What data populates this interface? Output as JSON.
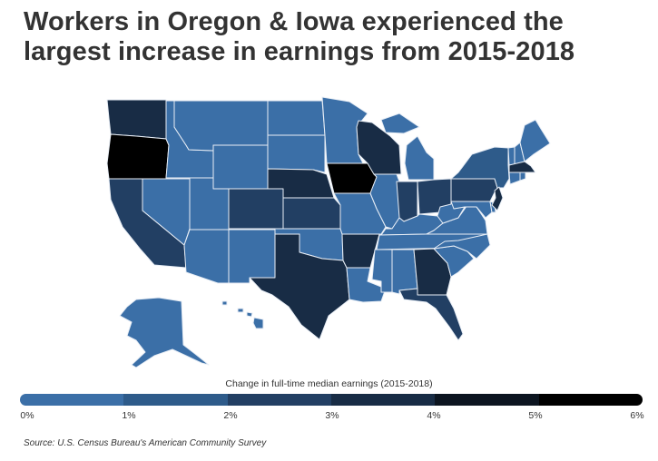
{
  "title": "Workers in Oregon & Iowa experienced the largest increase in earnings from 2015-2018",
  "legend": {
    "caption": "Change in full-time median earnings (2015-2018)",
    "ticks": [
      "0%",
      "1%",
      "2%",
      "3%",
      "4%",
      "5%",
      "6%"
    ],
    "colors": [
      "#3b6fa7",
      "#2e5b8a",
      "#223f63",
      "#182c45",
      "#0c1520",
      "#000000"
    ]
  },
  "source": "Source: U.S. Census Bureau's American Community Survey",
  "chart_data": {
    "type": "choropleth",
    "title": "Workers in Oregon & Iowa experienced the largest increase in earnings from 2015-2018",
    "metric": "Change in full-time median earnings (2015-2018), % bin lower bound",
    "bins": [
      0,
      1,
      2,
      3,
      4,
      5
    ],
    "states": {
      "WA": 3,
      "OR": 5,
      "CA": 2,
      "NV": 0,
      "ID": 0,
      "MT": 0,
      "WY": 0,
      "UT": 0,
      "AZ": 0,
      "NM": 0,
      "CO": 2,
      "ND": 0,
      "SD": 0,
      "NE": 3,
      "KS": 2,
      "OK": 0,
      "TX": 3,
      "MN": 0,
      "IA": 5,
      "MO": 0,
      "AR": 3,
      "LA": 0,
      "WI": 3,
      "IL": 0,
      "MI": 0,
      "IN": 2,
      "OH": 2,
      "KY": 0,
      "TN": 0,
      "MS": 0,
      "AL": 0,
      "GA": 3,
      "FL": 2,
      "SC": 0,
      "NC": 0,
      "VA": 0,
      "WV": 0,
      "MD": 0,
      "DE": 0,
      "PA": 2,
      "NY": 1,
      "NJ": 3,
      "CT": 0,
      "RI": 0,
      "MA": 3,
      "VT": 0,
      "NH": 0,
      "ME": 0,
      "AK": 0,
      "HI": 0
    }
  }
}
